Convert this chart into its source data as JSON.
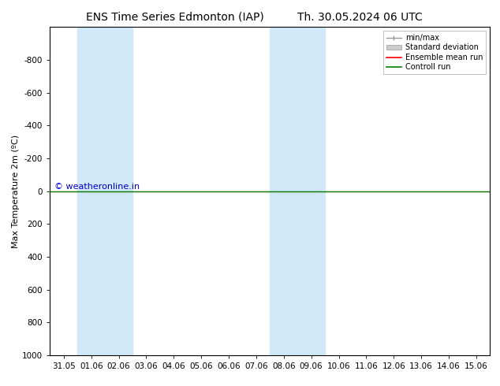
{
  "title_left": "ENS Time Series Edmonton (IAP)",
  "title_right": "Th. 30.05.2024 06 UTC",
  "ylabel": "Max Temperature 2m (ºC)",
  "ylim_top": -1000,
  "ylim_bottom": 1000,
  "yticks": [
    -800,
    -600,
    -400,
    -200,
    0,
    200,
    400,
    600,
    800,
    1000
  ],
  "xtick_labels": [
    "31.05",
    "01.06",
    "02.06",
    "03.06",
    "04.06",
    "05.06",
    "06.06",
    "07.06",
    "08.06",
    "09.06",
    "10.06",
    "11.06",
    "12.06",
    "13.06",
    "14.06",
    "15.06"
  ],
  "xtick_positions": [
    0,
    1,
    2,
    3,
    4,
    5,
    6,
    7,
    8,
    9,
    10,
    11,
    12,
    13,
    14,
    15
  ],
  "xlim": [
    -0.5,
    15.5
  ],
  "shaded_columns": [
    {
      "x_start": 0.5,
      "x_end": 2.5
    },
    {
      "x_start": 7.5,
      "x_end": 9.5
    }
  ],
  "shaded_color": "#d0e8f8",
  "control_run_color": "#008000",
  "ensemble_mean_color": "#ff0000",
  "line_y": 0,
  "background_color": "#ffffff",
  "watermark": "© weatheronline.in",
  "watermark_color": "#0000cc",
  "title_fontsize": 10,
  "axis_label_fontsize": 8,
  "tick_fontsize": 7.5,
  "legend_fontsize": 7
}
